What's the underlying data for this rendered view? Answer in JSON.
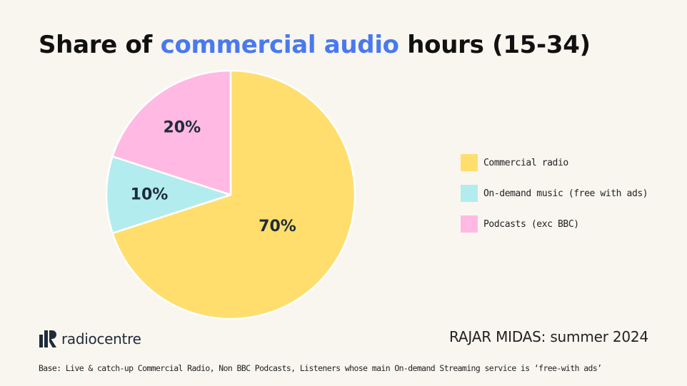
{
  "page": {
    "background": "#f9f6ef"
  },
  "title": {
    "before": "Share of ",
    "highlight": "commercial audio",
    "after": " hours (15-34)",
    "highlight_color": "#4a79ef"
  },
  "chart_data": {
    "type": "pie",
    "title": "Share of commercial audio hours (15-34)",
    "categories": [
      "Commercial radio",
      "On-demand music (free with ads)",
      "Podcasts (exc BBC)"
    ],
    "values": [
      70,
      10,
      20
    ],
    "labels": [
      "70%",
      "10%",
      "20%"
    ],
    "colors": [
      "#ffde6e",
      "#b2ecee",
      "#ffb9e3"
    ],
    "legend_position": "right"
  },
  "legend": {
    "items": [
      {
        "label": "Commercial radio",
        "color": "#ffde6e"
      },
      {
        "label": "On-demand music (free with ads)",
        "color": "#b2ecee"
      },
      {
        "label": "Podcasts (exc BBC)",
        "color": "#ffb9e3"
      }
    ]
  },
  "logo": {
    "text": "radiocentre",
    "icon": "radiocentre-logo-icon"
  },
  "source": "RAJAR MIDAS: summer 2024",
  "base_note": "Base: Live & catch-up Commercial Radio, Non BBC Podcasts, Listeners whose main On-demand Streaming service is ‘free-with ads’"
}
